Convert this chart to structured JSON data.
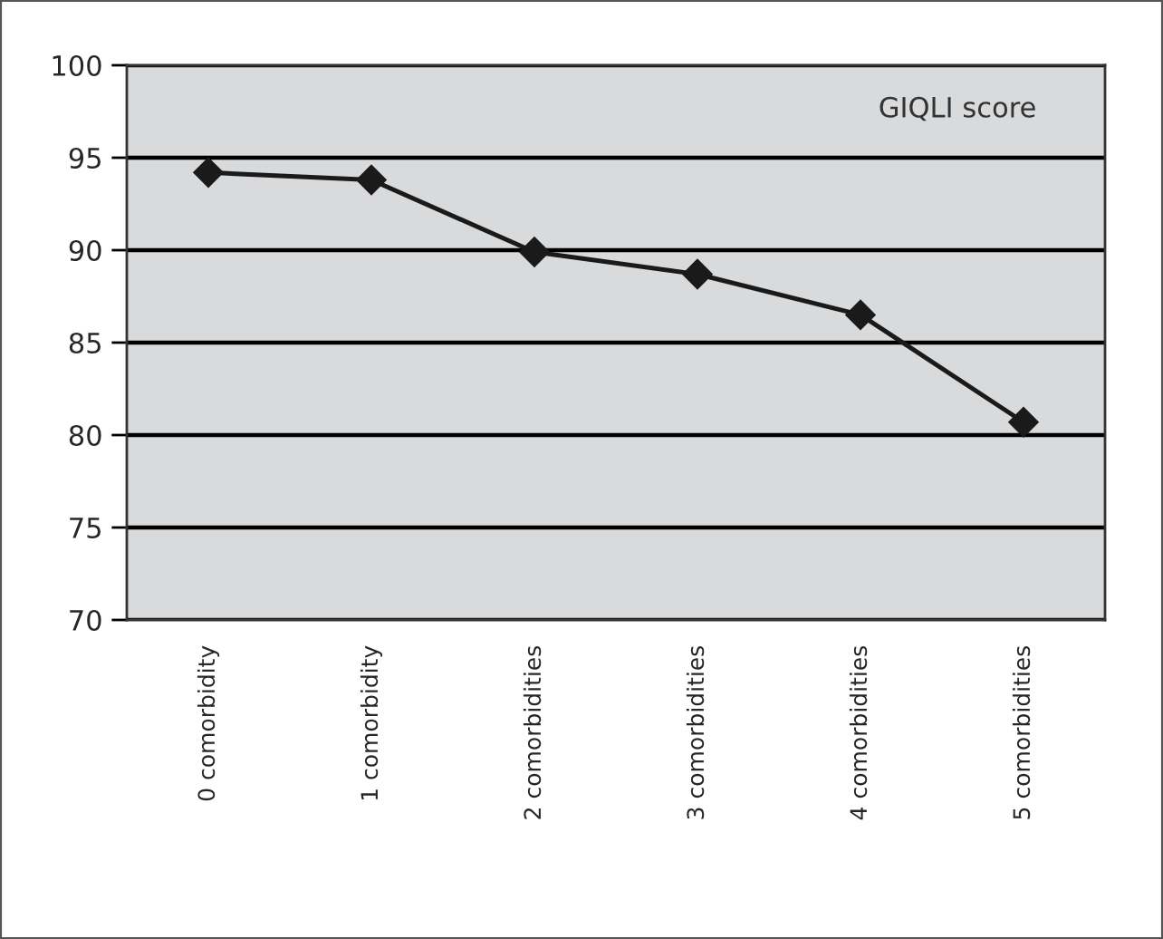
{
  "chart_data": {
    "type": "line",
    "categories": [
      "0 comorbidity",
      "1 comorbidity",
      "2 comorbidities",
      "3 comorbidities",
      "4 comorbidities",
      "5 comorbidities"
    ],
    "series": [
      {
        "color": "#1a1a1a",
        "values": [
          94.2,
          93.8,
          89.9,
          88.7,
          86.5,
          80.7
        ]
      }
    ],
    "annotations": [
      "GIQLI score"
    ],
    "ylim": [
      70,
      100
    ],
    "yticks": [
      70,
      75,
      80,
      85,
      90,
      95,
      100
    ],
    "grid": "y",
    "marker": "diamond",
    "line_style": "solid"
  }
}
